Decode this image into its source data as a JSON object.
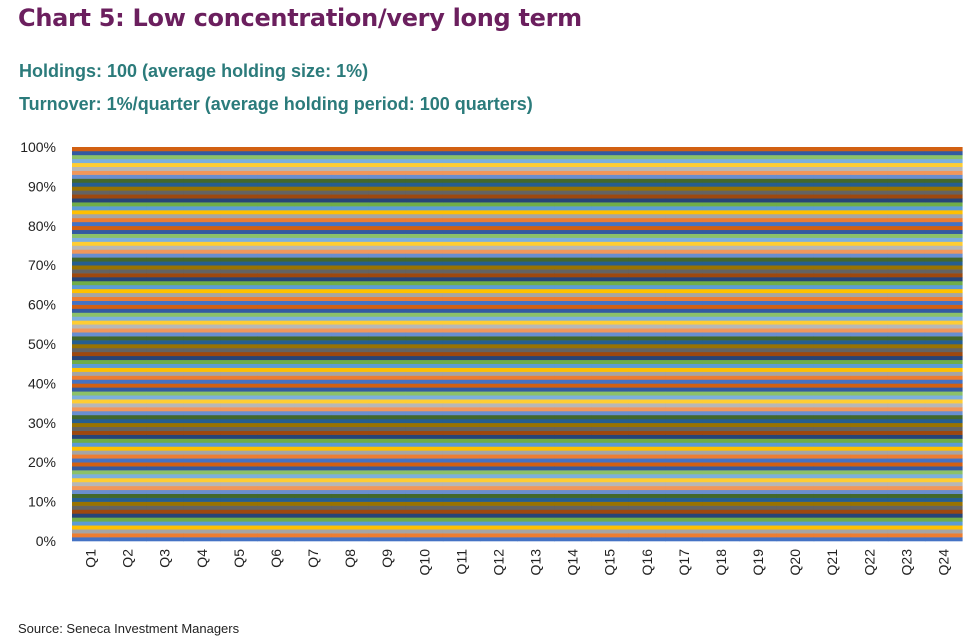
{
  "title": "Chart 5: Low concentration/very long term",
  "subtitle_1": "Holdings: 100 (average holding size: 1%)",
  "subtitle_2": "Turnover: 1%/quarter (average holding period: 100 quarters)",
  "source": "Source: Seneca Investment Managers",
  "colors": {
    "title": "#6b1f5e",
    "subtitle": "#2b7b7b",
    "palette": [
      "#4472c4",
      "#ed7d31",
      "#a5a5a5",
      "#ffc000",
      "#5b9bd5",
      "#70ad47",
      "#264478",
      "#9e480e",
      "#636363",
      "#997300",
      "#255e91",
      "#43682b",
      "#698ed0",
      "#f1975a",
      "#b7b7b7",
      "#ffcd33",
      "#7cafdd",
      "#8cc168",
      "#335aa1",
      "#d26012"
    ]
  },
  "chart_data": {
    "type": "bar",
    "stacked": "100%",
    "categories": [
      "Q1",
      "Q2",
      "Q3",
      "Q4",
      "Q5",
      "Q6",
      "Q7",
      "Q8",
      "Q9",
      "Q10",
      "Q11",
      "Q12",
      "Q13",
      "Q14",
      "Q15",
      "Q16",
      "Q17",
      "Q18",
      "Q19",
      "Q20",
      "Q21",
      "Q22",
      "Q23",
      "Q24"
    ],
    "series_count": 100,
    "series_value_each_quarter": 1,
    "ylim": [
      0,
      100
    ],
    "y_ticks": [
      "0%",
      "10%",
      "20%",
      "30%",
      "40%",
      "50%",
      "60%",
      "70%",
      "80%",
      "90%",
      "100%"
    ],
    "xlabel": "",
    "ylabel": "",
    "legend": "none",
    "grid": false
  }
}
